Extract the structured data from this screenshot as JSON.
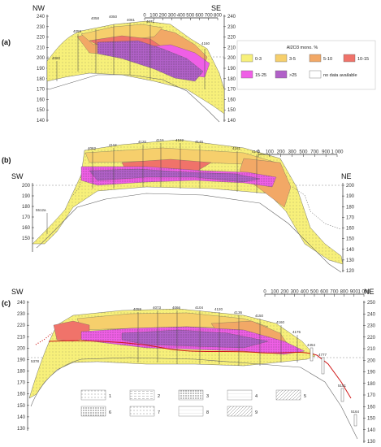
{
  "panels": [
    {
      "label": "(a)",
      "left_dir": "NW",
      "right_dir": "SE",
      "left_ticks": [
        "240",
        "230",
        "220",
        "210",
        "200",
        "190",
        "180",
        "170",
        "160",
        "150",
        "140"
      ],
      "right_ticks": [
        "240",
        "230",
        "220",
        "210",
        "200",
        "190",
        "180",
        "170",
        "160",
        "150",
        "140"
      ],
      "wells": [
        "4060",
        "4059",
        "4058",
        "4050",
        "4061",
        "4071",
        "4160"
      ],
      "scale_ticks": [
        "0",
        "100",
        "200",
        "300",
        "400",
        "500",
        "600",
        "700",
        "800"
      ]
    },
    {
      "label": "(b)",
      "left_dir": "SW",
      "right_dir": "NE",
      "left_ticks": [
        "200",
        "190",
        "180",
        "170",
        "160",
        "150"
      ],
      "right_ticks": [
        "200",
        "190",
        "180",
        "170",
        "160",
        "150",
        "140",
        "130",
        "120"
      ],
      "wells": [
        "5512a",
        "4062",
        "4118",
        "4120",
        "4116",
        "4132",
        "4146",
        "4161",
        "4171"
      ],
      "scale_ticks": [
        "0",
        "100",
        "200",
        "300",
        "500",
        "700",
        "900",
        "1 000"
      ]
    },
    {
      "label": "(c)",
      "left_dir": "SW",
      "right_dir": "NE",
      "left_ticks": [
        "240",
        "230",
        "220",
        "210",
        "200",
        "190",
        "180",
        "170",
        "160",
        "150",
        "140",
        "130"
      ],
      "right_ticks": [
        "250",
        "240",
        "230",
        "220",
        "210",
        "200",
        "190",
        "180",
        "170",
        "160",
        "150",
        "140",
        "130"
      ],
      "wells": [
        "4059",
        "4073",
        "4066",
        "4104",
        "4120",
        "4136",
        "4150",
        "4160",
        "4175",
        "4454",
        "4777",
        "5151",
        "5164",
        "5378"
      ],
      "scale_ticks": [
        "0",
        "100",
        "200",
        "300",
        "400",
        "500",
        "600",
        "700",
        "800",
        "900",
        "1 000"
      ]
    }
  ],
  "legend_al2o3": {
    "title": "Al2O3 mono. %",
    "items": [
      {
        "label": "0-3",
        "color": "#f7f07a"
      },
      {
        "label": "3-5",
        "color": "#f6cf6c"
      },
      {
        "label": "5-10",
        "color": "#f2a866"
      },
      {
        "label": "10-15",
        "color": "#f0736a"
      },
      {
        "label": "15-25",
        "color": "#ef5fe6"
      },
      {
        "label": ">25",
        "color": "#b161c8"
      },
      {
        "label": "no data available",
        "color": "#ffffff"
      }
    ]
  },
  "legend_lithology": [
    "1",
    "2",
    "3",
    "4",
    "5",
    "6",
    "7",
    "8",
    "9"
  ]
}
